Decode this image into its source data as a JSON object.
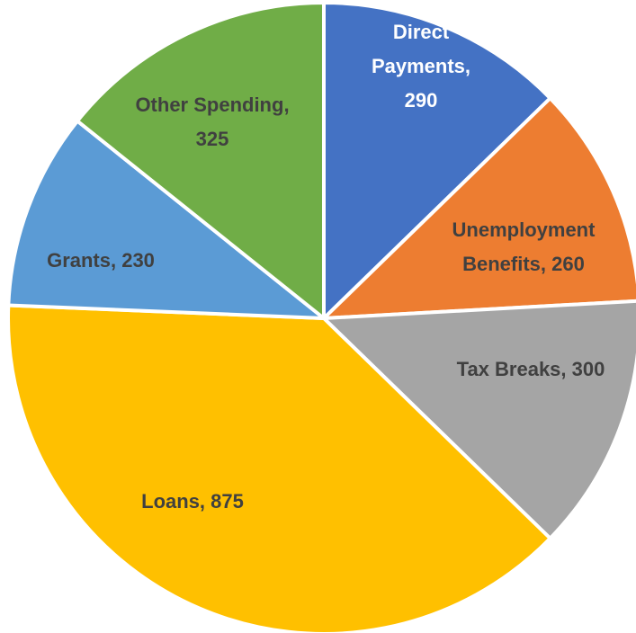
{
  "chart_data": {
    "type": "pie",
    "title": "",
    "categories": [
      "Direct Payments",
      "Unemployment Benefits",
      "Tax Breaks",
      "Loans",
      "Grants",
      "Other Spending"
    ],
    "values": [
      290,
      260,
      300,
      875,
      230,
      325
    ],
    "colors": [
      "#4472C4",
      "#ED7D31",
      "#A5A5A5",
      "#FFC000",
      "#5B9BD5",
      "#70AD47"
    ],
    "data_labels": [
      [
        "Direct",
        "Payments,",
        "290"
      ],
      [
        "Unemployment",
        "Benefits, 260"
      ],
      [
        "Tax Breaks, 300"
      ],
      [
        "Loans, 875"
      ],
      [
        "Grants, 230"
      ],
      [
        "Other Spending,",
        "325"
      ]
    ],
    "label_colors": [
      "#ffffff",
      "#404040",
      "#404040",
      "#404040",
      "#404040",
      "#404040"
    ],
    "start_angle_deg": 0,
    "direction": "clockwise",
    "legend": "none"
  }
}
